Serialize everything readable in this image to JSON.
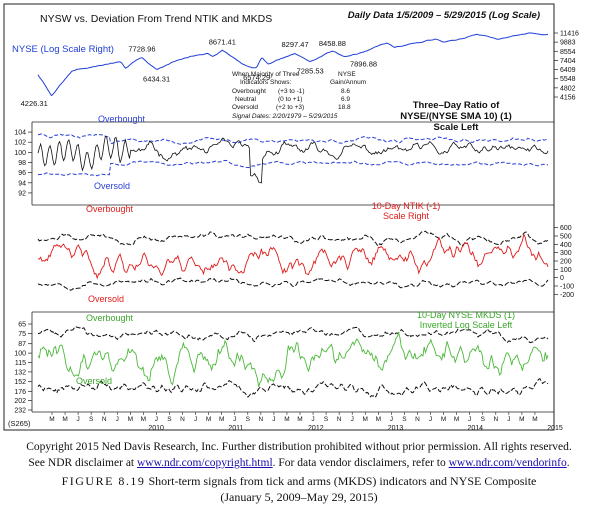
{
  "header": {
    "title": "NYSW vs. Deviation From Trend NTIK and MKDS",
    "data_note": "Daily Data 1/5/2009 – 5/29/2015 (Log Scale)"
  },
  "chart_data": [
    {
      "type": "line",
      "panel": "top",
      "series": [
        {
          "name": "NYSE (Log Scale Right)",
          "color": "#1f3fd6"
        }
      ],
      "x_range": [
        "2009-01-05",
        "2015-05-29"
      ],
      "y_scale": "log",
      "y_ticks_right": [
        "11416",
        "9883",
        "8554",
        "7404",
        "6409",
        "5548",
        "4802",
        "4156"
      ],
      "point_labels": [
        {
          "date": "2009-03-09",
          "value": 4226.31,
          "label": "4226.31"
        },
        {
          "date": "2010-04-26",
          "value": 7728.96,
          "label": "7728.96"
        },
        {
          "date": "2010-07-02",
          "value": 6434.31,
          "label": "6434.31"
        },
        {
          "date": "2011-04-29",
          "value": 8671.41,
          "label": "8671.41"
        },
        {
          "date": "2011-10-03",
          "value": 6574.29,
          "label": "6574.29"
        },
        {
          "date": "2012-03-27",
          "value": 8297.47,
          "label": "8297.47"
        },
        {
          "date": "2012-06-04",
          "value": 7285.53,
          "label": "7285.53"
        },
        {
          "date": "2012-09-14",
          "value": 8458.88,
          "label": "8458.88"
        },
        {
          "date": "2012-11-15",
          "value": 7896.88,
          "label": "7896.88"
        }
      ],
      "signal_table": {
        "title_lines": [
          "When Majority of Three",
          "Indicators Shows:"
        ],
        "column_header": [
          "NYSE",
          "Gain/Annum"
        ],
        "rows": [
          {
            "label": "Overbought",
            "range": "(+3 to -1)",
            "gain": "8.6"
          },
          {
            "label": "Neutral",
            "range": "(0 to +1)",
            "gain": "6.9"
          },
          {
            "label": "Oversold",
            "range": "(+2 to +3)",
            "gain": "18.8"
          }
        ],
        "signal_dates": "Signal Dates: 2/20/1979 – 5/29/2015"
      }
    },
    {
      "type": "line",
      "panel": "trin-ratio",
      "series": [
        {
          "name": "Three-Day Ratio of NYSE/(NYSE SMA 10) (1)",
          "color": "#111111"
        },
        {
          "name": "upper band",
          "color": "#2a3fd6",
          "dashed": true
        },
        {
          "name": "lower band",
          "color": "#2a3fd6",
          "dashed": true
        }
      ],
      "label_lines": [
        "Three–Day Ratio of",
        "NYSE/(NYSE SMA 10) (1)",
        "Scale Left"
      ],
      "y_ticks_left": [
        "104",
        "102",
        "100",
        "98",
        "96",
        "94",
        "92"
      ],
      "ylim": [
        91,
        105
      ],
      "zones": {
        "upper": "Overbought",
        "lower": "Oversold"
      }
    },
    {
      "type": "line",
      "panel": "ntik",
      "series": [
        {
          "name": "10-Day NTIK (-1)",
          "color": "#e01b1b"
        },
        {
          "name": "upper band",
          "color": "#111111",
          "dashed": true
        },
        {
          "name": "lower band",
          "color": "#111111",
          "dashed": true
        }
      ],
      "label_lines": [
        "10-Day NTIK (-1)",
        "Scale Right"
      ],
      "y_ticks_right": [
        "600",
        "500",
        "400",
        "300",
        "200",
        "100",
        "0",
        "-100",
        "-200"
      ],
      "ylim": [
        -220,
        620
      ],
      "zones": {
        "upper": "Overbought",
        "lower": "Oversold"
      }
    },
    {
      "type": "line",
      "panel": "mkds",
      "series": [
        {
          "name": "10-Day NYSE MKDS (1)",
          "color": "#4cb83a"
        },
        {
          "name": "upper band",
          "color": "#111111",
          "dashed": true
        },
        {
          "name": "lower band",
          "color": "#111111",
          "dashed": true
        }
      ],
      "label_lines": [
        "10-Day NYSE MKDS (1)",
        "Inverted Log Scale Left"
      ],
      "y_ticks_left": [
        "65",
        "75",
        "87",
        "100",
        "115",
        "132",
        "152",
        "176",
        "202",
        "232"
      ],
      "y_scale": "log (inverted)",
      "zones": {
        "upper": "Overbought",
        "lower": "Oversold"
      }
    }
  ],
  "x_axis": {
    "months": [
      "M",
      "M",
      "J",
      "S",
      "N",
      "J",
      "M",
      "M",
      "J",
      "S",
      "N",
      "J",
      "M",
      "M",
      "J",
      "S",
      "N",
      "J",
      "M",
      "M",
      "J",
      "S",
      "N",
      "J",
      "M",
      "M",
      "J",
      "S",
      "N",
      "J",
      "M",
      "M",
      "J",
      "S",
      "N",
      "J",
      "M",
      "M"
    ],
    "years": [
      "2010",
      "2011",
      "2012",
      "2013",
      "2014",
      "2015"
    ]
  },
  "footer_code": "(S265)",
  "captions": {
    "copyright": "Copyright 2015 Ned Davis Research, Inc. Further distribution prohibited without prior permission. All rights reserved.",
    "disclaimer_pre": "See NDR disclaimer at ",
    "disclaimer_link1": "www.ndr.com/copyright.html",
    "disclaimer_mid": ". For data vendor disclaimers, refer to ",
    "disclaimer_link2": "www.ndr.com/vendorinfo",
    "disclaimer_end": ".",
    "figure_number": "FIGURE 8.19",
    "figure_title": " Short-term signals from tick and arms (MKDS) indicators and NYSE Composite",
    "figure_dates": "(January 5, 2009–May 29, 2015)"
  }
}
